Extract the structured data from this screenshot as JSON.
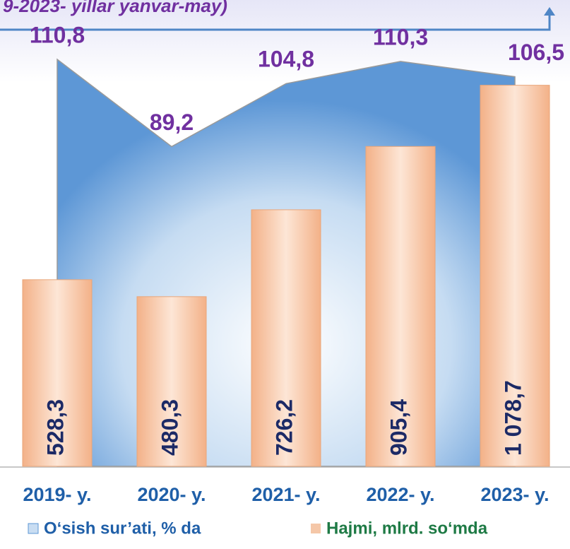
{
  "chart_data": {
    "type": "bar",
    "title": "9-2023- yillar yanvar-may)",
    "categories": [
      "2019- y.",
      "2020- y.",
      "2021- y.",
      "2022- y.",
      "2023- y."
    ],
    "series": [
      {
        "name": "O‘sish sur’ati, % da",
        "type": "area",
        "axis": "y2",
        "color": "#7fb0e0",
        "values": [
          110.8,
          89.2,
          104.8,
          110.3,
          106.5
        ],
        "value_labels": [
          "110,8",
          "89,2",
          "104,8",
          "110,3",
          "106,5"
        ]
      },
      {
        "name": "Hajmi, mlrd. so‘mda",
        "type": "bar",
        "color": "#f5b78e",
        "values": [
          528.3,
          480.3,
          726.2,
          905.4,
          1078.7
        ],
        "value_labels": [
          "528,3",
          "480,3",
          "726,2",
          "905,4",
          "1 078,7"
        ]
      }
    ],
    "ylim": [
      0,
      1200
    ],
    "y2lim": [
      10,
      115
    ]
  }
}
